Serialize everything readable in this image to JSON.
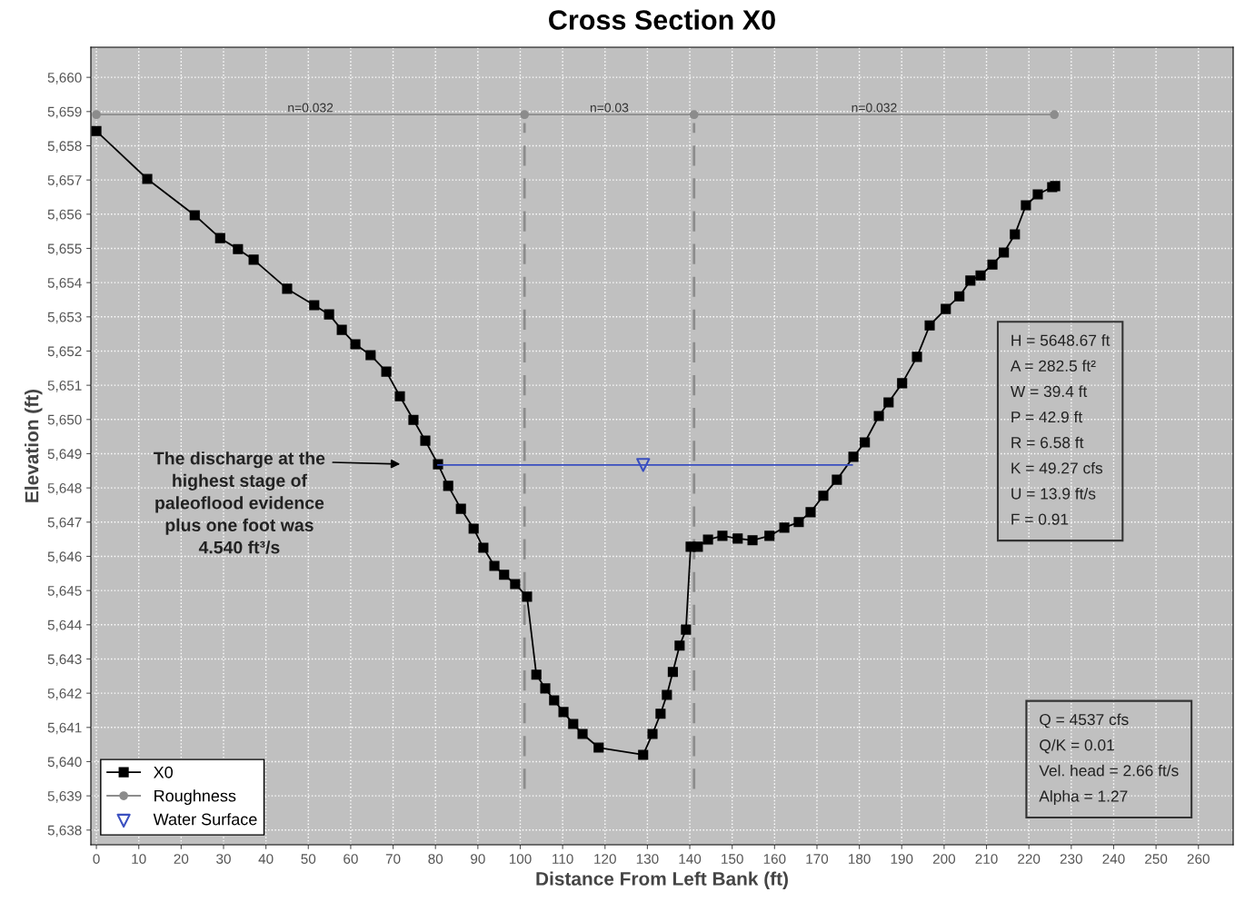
{
  "chart_data": {
    "type": "line",
    "title": "Cross Section X0",
    "xlabel": "Distance From Left Bank (ft)",
    "ylabel": "Elevation (ft)",
    "xlim": [
      -1.3,
      268.2
    ],
    "ylim": [
      5637.57,
      5660.88
    ],
    "xticks": [
      0,
      10,
      20,
      30,
      40,
      50,
      60,
      70,
      80,
      90,
      100,
      110,
      120,
      130,
      140,
      150,
      160,
      170,
      180,
      190,
      200,
      210,
      220,
      230,
      240,
      250,
      260
    ],
    "yticks": [
      {
        "value": 5638,
        "label": "5,638"
      },
      {
        "value": 5639,
        "label": "5,639"
      },
      {
        "value": 5640,
        "label": "5,640"
      },
      {
        "value": 5641,
        "label": "5,641"
      },
      {
        "value": 5642,
        "label": "5,642"
      },
      {
        "value": 5643,
        "label": "5,643"
      },
      {
        "value": 5644,
        "label": "5,644"
      },
      {
        "value": 5645,
        "label": "5,645"
      },
      {
        "value": 5646,
        "label": "5,646"
      },
      {
        "value": 5647,
        "label": "5,647"
      },
      {
        "value": 5648,
        "label": "5,648"
      },
      {
        "value": 5649,
        "label": "5,649"
      },
      {
        "value": 5650,
        "label": "5,650"
      },
      {
        "value": 5651,
        "label": "5,651"
      },
      {
        "value": 5652,
        "label": "5,652"
      },
      {
        "value": 5653,
        "label": "5,653"
      },
      {
        "value": 5654,
        "label": "5,654"
      },
      {
        "value": 5655,
        "label": "5,655"
      },
      {
        "value": 5656,
        "label": "5,656"
      },
      {
        "value": 5657,
        "label": "5,657"
      },
      {
        "value": 5658,
        "label": "5,658"
      },
      {
        "value": 5659,
        "label": "5,659"
      },
      {
        "value": 5660,
        "label": "5,660"
      }
    ],
    "grid": true,
    "legend": "bottom left",
    "series": [
      {
        "name": "X0",
        "color": "#000000",
        "marker": "square",
        "x": [
          0,
          12.0,
          23.2,
          29.2,
          33.4,
          37.1,
          45.0,
          51.4,
          54.9,
          57.9,
          61.1,
          64.7,
          68.4,
          71.6,
          74.8,
          77.6,
          80.6,
          83.0,
          86.0,
          89.0,
          91.3,
          93.9,
          96.2,
          98.8,
          101.6,
          103.8,
          105.9,
          108.0,
          110.2,
          112.5,
          114.7,
          118.5,
          129.0,
          131.2,
          133.1,
          134.6,
          136.0,
          137.6,
          139.1,
          140.2,
          141.9,
          144.3,
          147.7,
          151.3,
          154.8,
          158.8,
          162.3,
          165.7,
          168.5,
          171.5,
          174.7,
          178.6,
          181.3,
          184.6,
          186.9,
          190.1,
          193.6,
          196.6,
          200.4,
          203.6,
          206.2,
          208.6,
          211.4,
          214.1,
          216.7,
          219.3,
          222.1,
          225.5,
          226.2
        ],
        "values": [
          5658.43,
          5657.03,
          5655.97,
          5655.3,
          5654.98,
          5654.67,
          5653.82,
          5653.34,
          5653.07,
          5652.62,
          5652.2,
          5651.88,
          5651.4,
          5650.68,
          5649.99,
          5649.38,
          5648.69,
          5648.06,
          5647.39,
          5646.81,
          5646.25,
          5645.72,
          5645.46,
          5645.19,
          5644.82,
          5642.54,
          5642.14,
          5641.79,
          5641.45,
          5641.1,
          5640.81,
          5640.41,
          5640.2,
          5640.81,
          5641.4,
          5641.95,
          5642.62,
          5643.39,
          5643.86,
          5646.28,
          5646.28,
          5646.49,
          5646.6,
          5646.52,
          5646.47,
          5646.6,
          5646.84,
          5647.0,
          5647.29,
          5647.77,
          5648.24,
          5648.91,
          5649.33,
          5650.1,
          5650.5,
          5651.06,
          5651.83,
          5652.75,
          5653.23,
          5653.6,
          5654.06,
          5654.21,
          5654.53,
          5654.88,
          5655.41,
          5656.26,
          5656.58,
          5656.79,
          5656.82
        ]
      },
      {
        "name": "Roughness",
        "color": "#8c8c8c",
        "marker": "circle",
        "x": [
          0,
          101,
          141,
          226
        ],
        "values": [
          5658.91,
          5658.91,
          5658.91,
          5658.91
        ]
      },
      {
        "color": "#3a4fc0",
        "marker": "none",
        "x": [
          80.6,
          178.3
        ],
        "values": [
          5648.67,
          5648.67
        ]
      },
      {
        "name": "Water Surface",
        "type": "scatter",
        "color": "#3a4fc0",
        "marker": "triangle",
        "x": [
          129
        ],
        "values": [
          5648.67
        ]
      }
    ],
    "ref_lines": [
      {
        "axis": "x",
        "value": 101,
        "color": "#8c8c8c",
        "line_style": "dashed"
      },
      {
        "axis": "x",
        "value": 141,
        "color": "#8c8c8c",
        "line_style": "dashed"
      }
    ],
    "annotations": [
      {
        "text": "n=0.032",
        "x": 50.5,
        "y": 5658.91
      },
      {
        "text": "n=0.03",
        "x": 121,
        "y": 5658.91
      },
      {
        "text": "n=0.032",
        "x": 183.5,
        "y": 5658.91
      },
      "The discharge at the\nhighest stage of\npaleoflood evidence\nplus one foot was\n4.540 ft³/s",
      "H = 5648.67 ft\nA = 282.5 ft²\nW = 39.4 ft\nP = 42.9 ft\nR = 6.58 ft\nK = 49.27 cfs\nU = 13.9 ft/s\nF = 0.91",
      "Q = 4537 cfs\nQ/K = 0.01\nVel. head = 2.66 ft/s\nAlpha = 1.27"
    ]
  }
}
